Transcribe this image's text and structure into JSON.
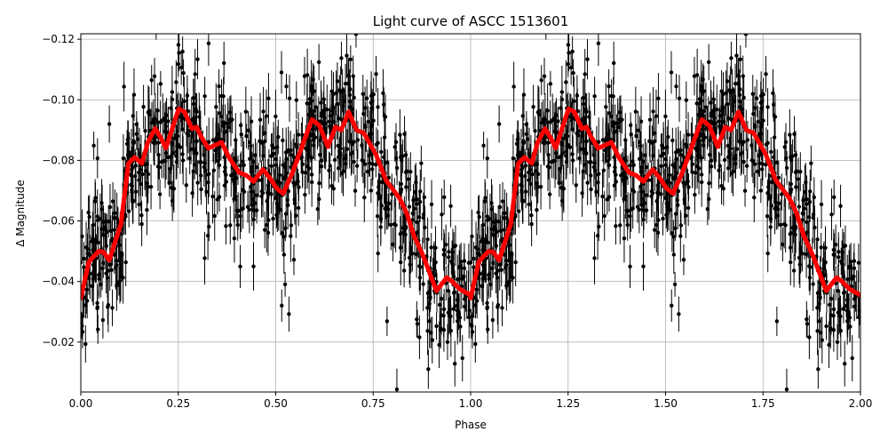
{
  "chart_data": {
    "type": "scatter",
    "title": "Light curve of ASCC 1513601",
    "xlabel": "Phase",
    "ylabel": "Δ Magnitude",
    "xlim": [
      0,
      2
    ],
    "ylim": [
      -0.1218,
      -0.0035
    ],
    "y_inverted": true,
    "grid": true,
    "x_ticks": [
      "0.00",
      "0.25",
      "0.50",
      "0.75",
      "1.00",
      "1.25",
      "1.50",
      "1.75",
      "2.00"
    ],
    "x_tick_values": [
      0,
      0.25,
      0.5,
      0.75,
      1,
      1.25,
      1.5,
      1.75,
      2
    ],
    "y_ticks": [
      "−0.12",
      "−0.10",
      "−0.08",
      "−0.06",
      "−0.04",
      "−0.02"
    ],
    "y_tick_values": [
      -0.12,
      -0.1,
      -0.08,
      -0.06,
      -0.04,
      -0.02
    ],
    "series": [
      {
        "style": "points with error bars",
        "color": "#000000",
        "description_values": "dense observations scattered around the smoothed curve, phase-folded and repeated over two cycles"
      },
      {
        "style": "line",
        "color": "#ff0000",
        "repeat_period": 1,
        "x": [
          0,
          0.021,
          0.046,
          0.058,
          0.073,
          0.103,
          0.122,
          0.138,
          0.157,
          0.172,
          0.191,
          0.207,
          0.218,
          0.251,
          0.266,
          0.285,
          0.297,
          0.308,
          0.327,
          0.361,
          0.38,
          0.406,
          0.425,
          0.443,
          0.467,
          0.486,
          0.501,
          0.519,
          0.543,
          0.593,
          0.612,
          0.634,
          0.653,
          0.668,
          0.687,
          0.707,
          0.726,
          0.757,
          0.783,
          0.817,
          0.836,
          0.855,
          0.878,
          0.912,
          0.939,
          0.954,
          0.973,
          1.0
        ],
        "y": [
          -0.0345,
          -0.0466,
          -0.05,
          -0.0497,
          -0.047,
          -0.059,
          -0.079,
          -0.081,
          -0.079,
          -0.086,
          -0.0905,
          -0.087,
          -0.084,
          -0.097,
          -0.096,
          -0.0905,
          -0.091,
          -0.088,
          -0.084,
          -0.086,
          -0.081,
          -0.076,
          -0.075,
          -0.073,
          -0.077,
          -0.074,
          -0.071,
          -0.069,
          -0.076,
          -0.0935,
          -0.0915,
          -0.0845,
          -0.091,
          -0.09,
          -0.096,
          -0.09,
          -0.089,
          -0.082,
          -0.0734,
          -0.0676,
          -0.0626,
          -0.055,
          -0.0486,
          -0.0369,
          -0.0413,
          -0.0398,
          -0.0374,
          -0.0355
        ]
      }
    ]
  }
}
